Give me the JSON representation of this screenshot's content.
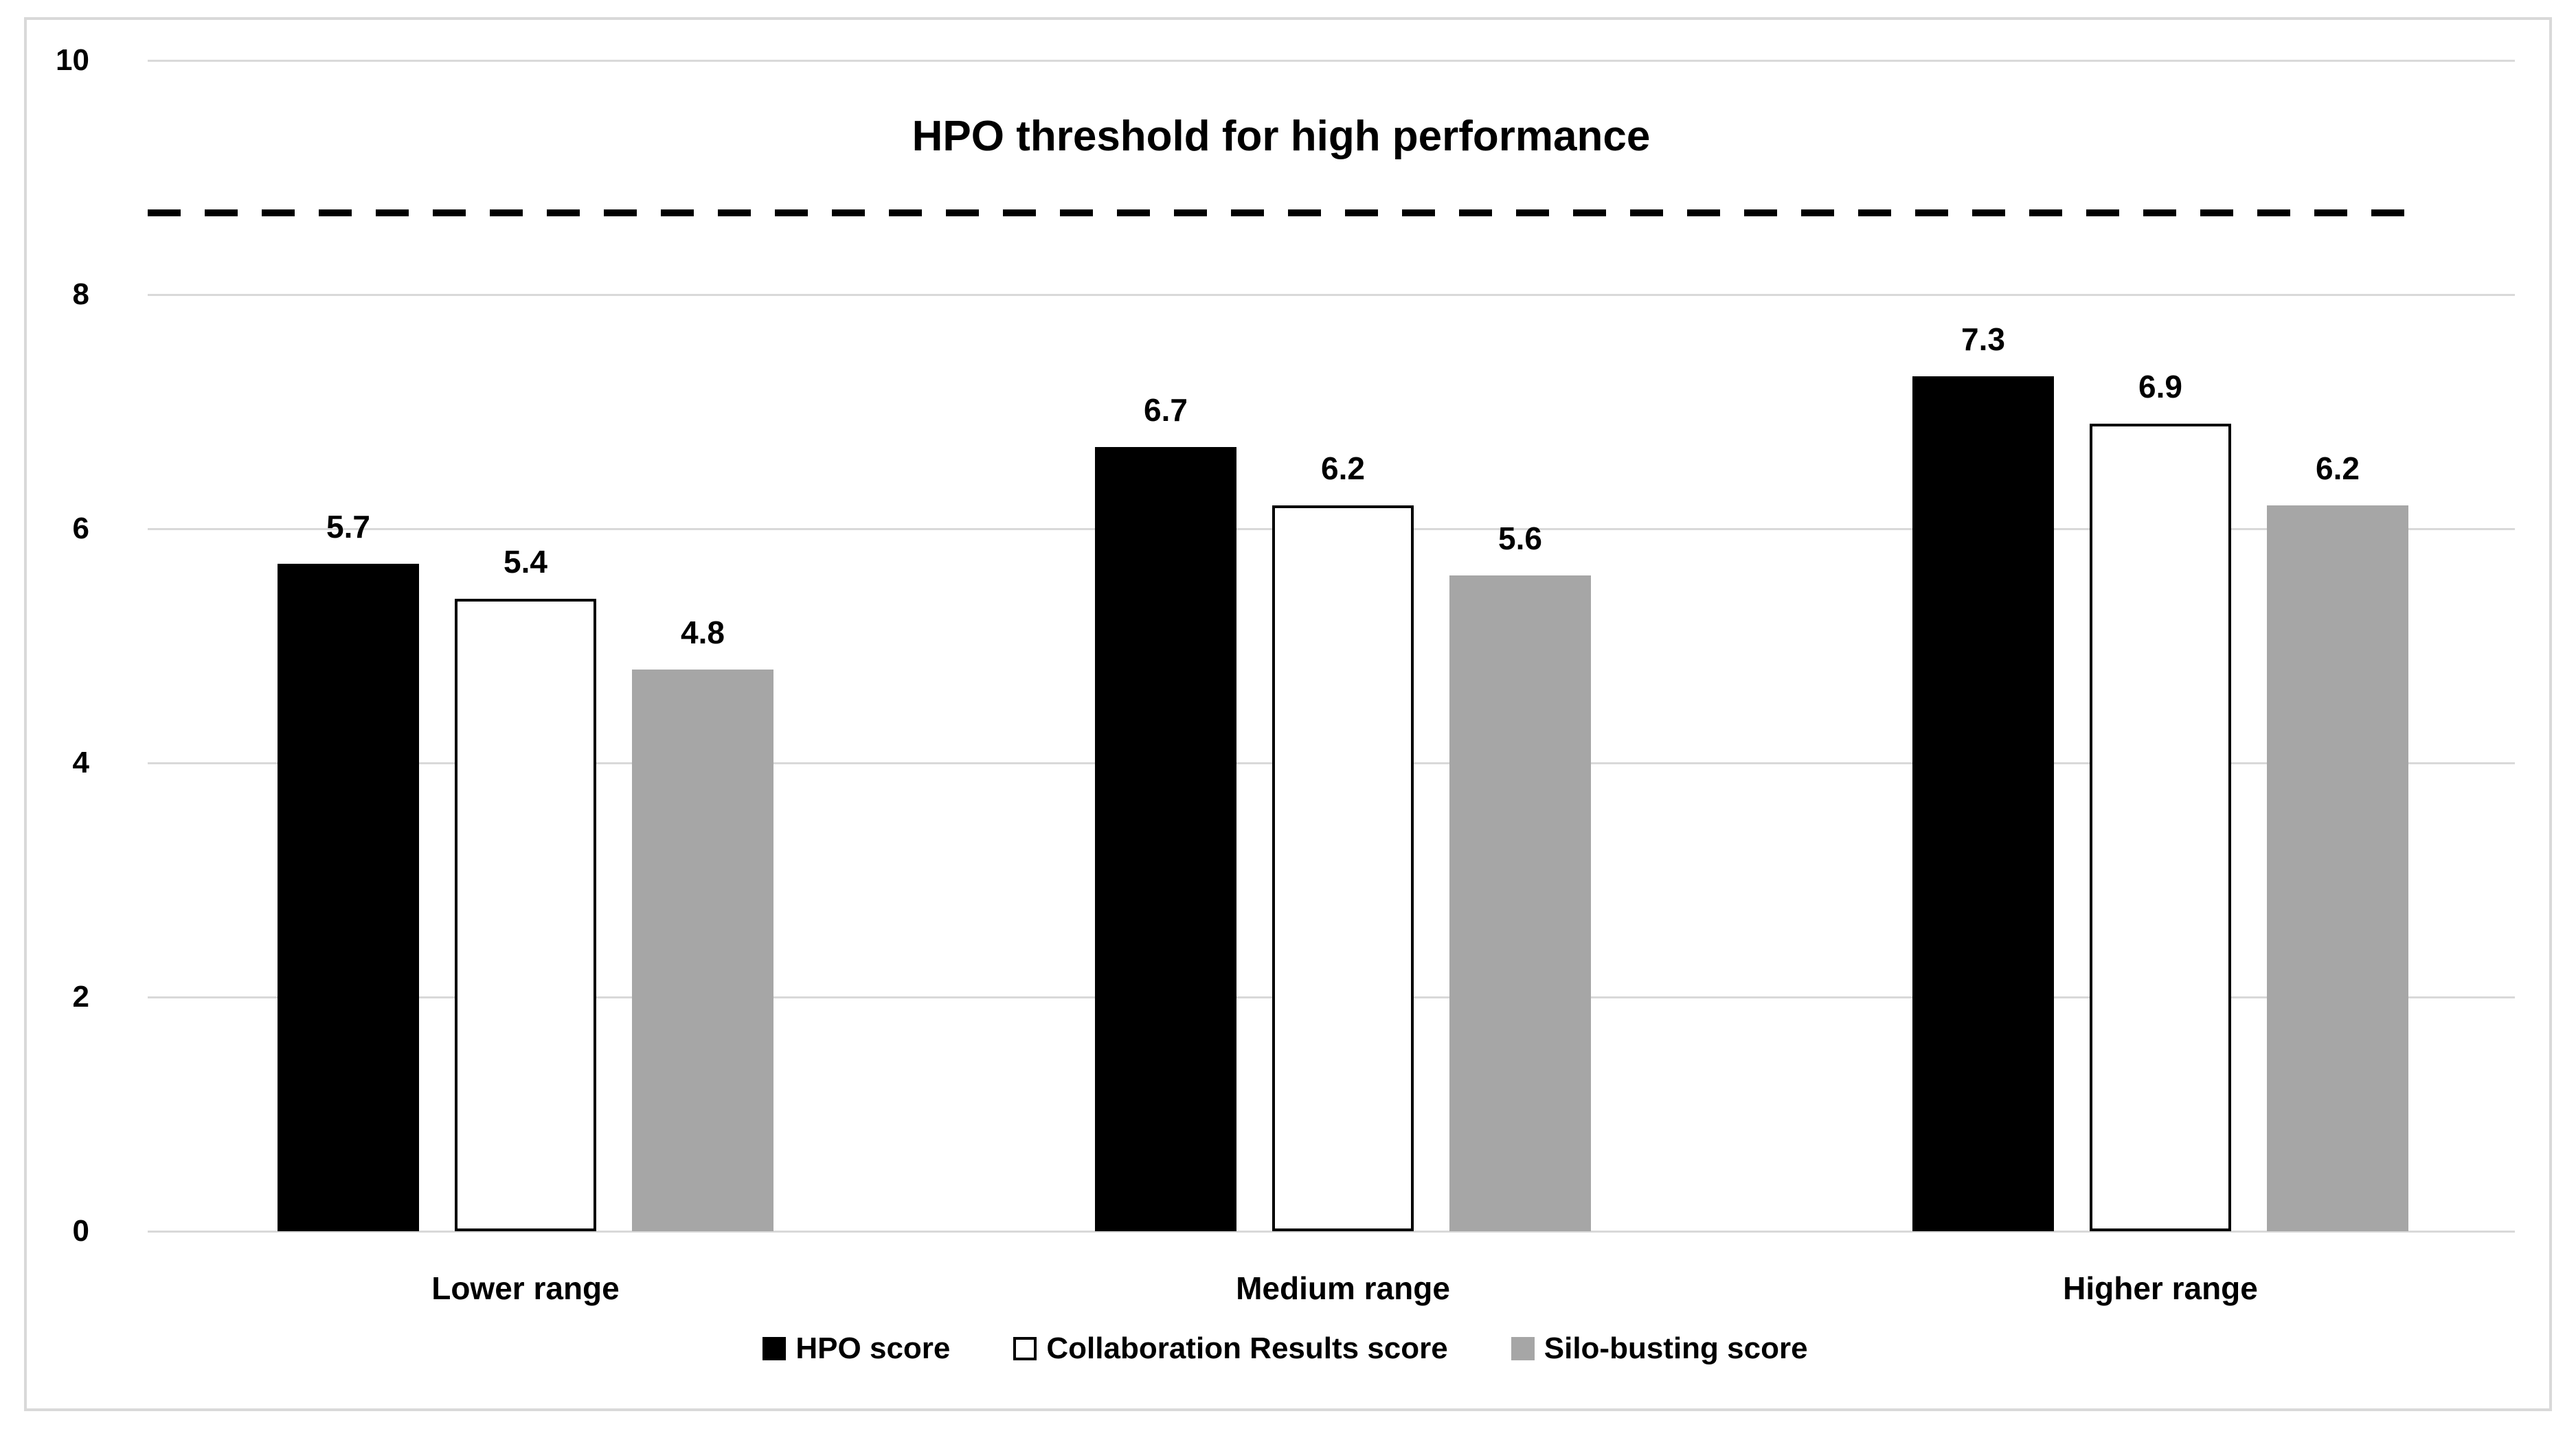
{
  "chart_data": {
    "type": "bar",
    "title": "HPO threshold for high performance",
    "categories": [
      "Lower range",
      "Medium range",
      "Higher range"
    ],
    "series": [
      {
        "name": "HPO score",
        "fill": "#000000",
        "border": "#000000",
        "values": [
          5.7,
          6.7,
          7.3
        ]
      },
      {
        "name": "Collaboration Results score",
        "fill": "#ffffff",
        "border": "#000000",
        "values": [
          5.4,
          6.2,
          6.9
        ]
      },
      {
        "name": "Silo-busting score",
        "fill": "#a6a6a6",
        "border": "#a6a6a6",
        "values": [
          4.8,
          5.6,
          6.2
        ]
      }
    ],
    "y_axis": {
      "min": 0,
      "max": 10,
      "tick_step": 2,
      "ticks": [
        0,
        2,
        4,
        6,
        8,
        10
      ]
    },
    "threshold_line": {
      "value": 8.7,
      "style": "dashed",
      "color": "#000000",
      "label": "HPO threshold for high performance"
    },
    "data_labels_decimals": 1,
    "grid": true,
    "legend_position": "bottom",
    "colors": {
      "gridline": "#d9d9d9",
      "frame_border": "#d9d9d9",
      "background": "#ffffff",
      "text": "#000000"
    }
  }
}
